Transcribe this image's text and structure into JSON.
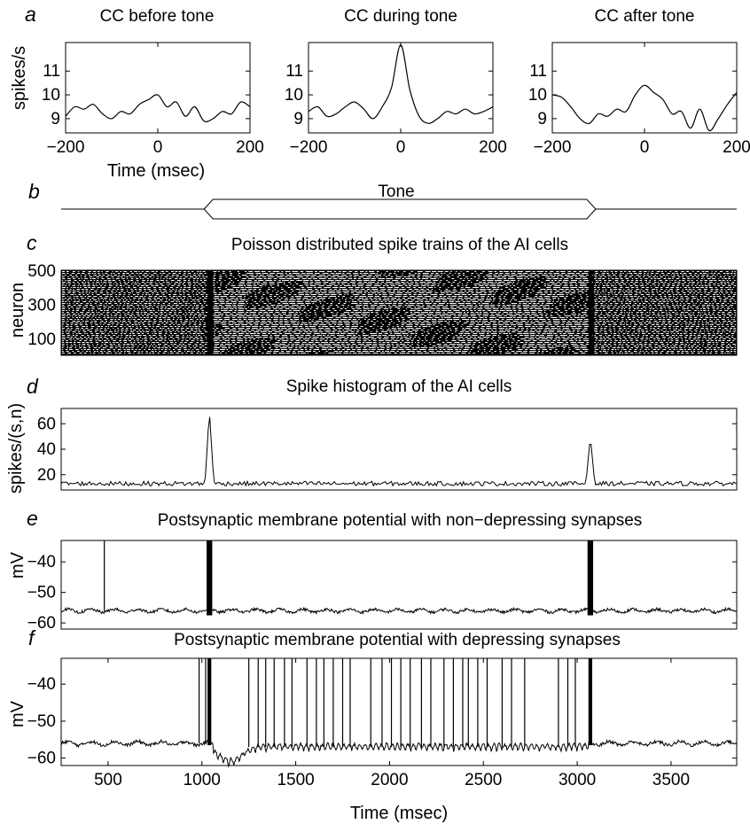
{
  "chart_data": [
    {
      "id": "a1",
      "panel_letter": "a",
      "type": "line",
      "title": "CC before tone",
      "xlabel": "Time (msec)",
      "ylabel": "spikes/s",
      "xlim": [
        -200,
        200
      ],
      "ylim": [
        8.4,
        12.2
      ],
      "xticks": [
        -200,
        0,
        200
      ],
      "yticks": [
        9,
        10,
        11
      ],
      "x": [
        -200,
        -180,
        -160,
        -140,
        -120,
        -100,
        -80,
        -60,
        -40,
        -20,
        0,
        20,
        40,
        60,
        80,
        100,
        120,
        140,
        160,
        180,
        200
      ],
      "y": [
        9.1,
        9.5,
        9.4,
        9.6,
        9.2,
        9.0,
        9.3,
        9.2,
        9.6,
        9.8,
        10.0,
        9.5,
        9.7,
        9.1,
        9.5,
        8.9,
        9.0,
        9.3,
        9.2,
        9.7,
        9.5
      ]
    },
    {
      "id": "a2",
      "type": "line",
      "title": "CC during tone",
      "xlim": [
        -200,
        200
      ],
      "ylim": [
        8.4,
        12.2
      ],
      "xticks": [
        -200,
        0,
        200
      ],
      "yticks": [
        9,
        10,
        11
      ],
      "x": [
        -200,
        -180,
        -160,
        -140,
        -120,
        -100,
        -80,
        -60,
        -40,
        -20,
        0,
        20,
        40,
        60,
        80,
        100,
        120,
        140,
        160,
        180,
        200
      ],
      "y": [
        9.3,
        9.5,
        9.1,
        9.2,
        9.5,
        9.7,
        9.4,
        9.0,
        9.5,
        10.3,
        12.1,
        10.2,
        9.1,
        8.8,
        9.0,
        9.3,
        9.2,
        9.4,
        9.2,
        9.3,
        9.5
      ]
    },
    {
      "id": "a3",
      "type": "line",
      "title": "CC after tone",
      "xlim": [
        -200,
        200
      ],
      "ylim": [
        8.4,
        12.2
      ],
      "xticks": [
        -200,
        0,
        200
      ],
      "yticks": [
        9,
        10,
        11
      ],
      "x": [
        -200,
        -180,
        -160,
        -140,
        -120,
        -100,
        -80,
        -60,
        -40,
        -20,
        0,
        20,
        40,
        60,
        80,
        100,
        120,
        140,
        160,
        180,
        200
      ],
      "y": [
        10.0,
        9.9,
        9.5,
        9.0,
        8.8,
        9.2,
        9.1,
        9.4,
        9.3,
        10.0,
        10.4,
        10.1,
        9.8,
        9.2,
        9.3,
        8.6,
        9.4,
        8.5,
        9.0,
        9.6,
        10.1
      ]
    },
    {
      "id": "c",
      "panel_letter": "c",
      "type": "heatmap",
      "title": "Poisson distributed spike trains of the AI cells",
      "ylabel": "neuron",
      "xlim": [
        250,
        3850
      ],
      "ylim": [
        0,
        500
      ],
      "yticks": [
        100,
        300,
        500
      ],
      "onset_ms": 1040,
      "offset_ms": 3070
    },
    {
      "id": "d",
      "panel_letter": "d",
      "type": "line",
      "title": "Spike histogram of the AI cells",
      "ylabel": "spikes/(s,n)",
      "xlim": [
        250,
        3850
      ],
      "ylim": [
        8,
        72
      ],
      "yticks": [
        20,
        40,
        60
      ],
      "baseline": 13,
      "peaks": [
        {
          "x": 1040,
          "y": 70
        },
        {
          "x": 3070,
          "y": 50
        }
      ]
    },
    {
      "id": "e",
      "panel_letter": "e",
      "type": "line",
      "title": "Postsynaptic membrane potential with non−depressing synapses",
      "ylabel": "mV",
      "xlim": [
        250,
        3850
      ],
      "ylim": [
        -62,
        -33
      ],
      "yticks": [
        -60,
        -50,
        -40
      ],
      "baseline": -56,
      "spike_peak": -33,
      "spikes": [
        480
      ],
      "bursts": [
        {
          "x": 1040,
          "width": 30,
          "bottom": -57.5
        },
        {
          "x": 3070,
          "width": 30,
          "bottom": -57.5
        }
      ]
    },
    {
      "id": "f",
      "panel_letter": "f",
      "type": "line",
      "title": "Postsynaptic membrane potential with depressing synapses",
      "ylabel": "mV",
      "xlabel": "Time (msec)",
      "xlim": [
        250,
        3850
      ],
      "ylim": [
        -62,
        -33
      ],
      "xticks": [
        500,
        1000,
        1500,
        2000,
        2500,
        3000,
        3500
      ],
      "yticks": [
        -60,
        -50,
        -40
      ],
      "baseline": -56,
      "spike_peak": -33,
      "spikes": [
        985,
        1020,
        1250,
        1300,
        1340,
        1385,
        1440,
        1480,
        1560,
        1610,
        1650,
        1700,
        1750,
        1790,
        1900,
        1960,
        2010,
        2060,
        2110,
        2170,
        2220,
        2290,
        2340,
        2390,
        2420,
        2470,
        2520,
        2600,
        2650,
        2720,
        2900,
        2950,
        2990
      ],
      "bursts": [
        {
          "x": 1040,
          "width": 20,
          "bottom": -56.5
        },
        {
          "x": 3070,
          "width": 20,
          "bottom": -56.5
        }
      ]
    }
  ],
  "tone_bar": {
    "panel_letter": "b",
    "label": "Tone",
    "onset_ms": 1040,
    "offset_ms": 3070
  }
}
